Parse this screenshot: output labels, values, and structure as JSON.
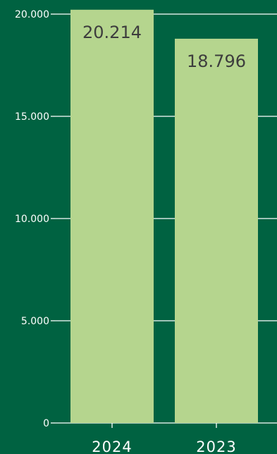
{
  "chart_data": {
    "type": "bar",
    "categories": [
      "2024",
      "2023"
    ],
    "values": [
      20214,
      18796
    ],
    "value_labels": [
      "20.214",
      "18.796"
    ],
    "yticks": [
      0,
      5000,
      10000,
      15000,
      20000
    ],
    "ytick_labels": [
      "0",
      "5.000",
      "10.000",
      "15.000",
      "20.000"
    ],
    "ylim": [
      0,
      20000
    ],
    "grid": true,
    "legend": "none"
  },
  "colors": {
    "background": "#006241",
    "bar": "#b5d58e",
    "gridline": "#ffffff",
    "axis_text": "#ffffff",
    "value_text": "#3d3d3d"
  }
}
